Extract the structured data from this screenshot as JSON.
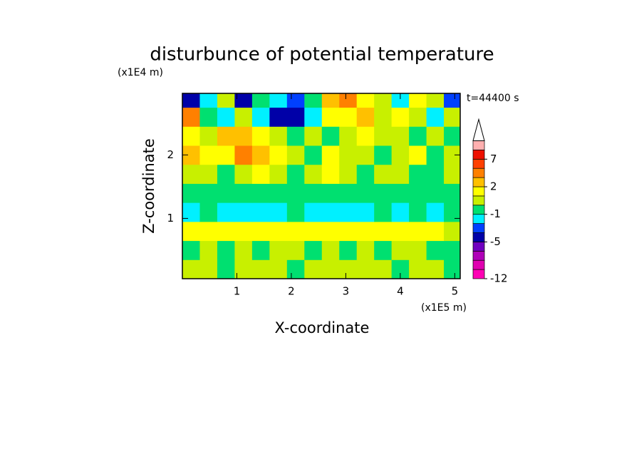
{
  "chart_data": {
    "type": "contour",
    "title": "disturbunce of potential temperature",
    "x_label": "X-coordinate",
    "y_label": "Z-coordinate",
    "x_unit": "(x1E5 m)",
    "y_unit": "(x1E4 m)",
    "annotation": "t=44400 s",
    "xlim": [
      0,
      5.1
    ],
    "ylim": [
      0.05,
      2.97
    ],
    "xticks": [
      1,
      2,
      3,
      4,
      5
    ],
    "yticks": [
      1,
      2
    ],
    "x": [
      0.16,
      0.48,
      0.8,
      1.12,
      1.44,
      1.76,
      2.08,
      2.4,
      2.72,
      3.04,
      3.36,
      3.68,
      4.0,
      4.32,
      4.64,
      4.96
    ],
    "y": [
      0.2,
      0.5,
      0.8,
      1.1,
      1.4,
      1.7,
      2.0,
      2.3,
      2.6,
      2.9
    ],
    "z": [
      [
        0.5,
        0.5,
        -0.5,
        0.5,
        0.5,
        0.5,
        -0.5,
        0.5,
        0.5,
        0.5,
        0.5,
        0.5,
        -0.5,
        0.5,
        0.5,
        -0.5
      ],
      [
        -0.5,
        0.5,
        -0.5,
        0.5,
        -0.5,
        0.5,
        0.5,
        -0.5,
        0.5,
        -0.5,
        0.5,
        -0.5,
        0.5,
        0.5,
        -0.5,
        -0.5
      ],
      [
        1.5,
        1.5,
        1.5,
        1.5,
        1.5,
        1.5,
        1.5,
        1.5,
        1.5,
        1.5,
        1.5,
        1.5,
        1.5,
        1.5,
        1.5,
        0.5
      ],
      [
        -1.5,
        -0.5,
        -1.5,
        -1.5,
        -1.5,
        -1.5,
        -0.5,
        -1.5,
        -1.5,
        -1.5,
        -1.5,
        -0.5,
        -1.5,
        -0.5,
        -1.5,
        -0.5
      ],
      [
        -0.5,
        -0.5,
        -0.5,
        -0.5,
        -0.5,
        -0.5,
        -0.5,
        -0.5,
        -0.5,
        -0.5,
        -0.5,
        -0.5,
        -0.5,
        -0.5,
        -0.5,
        -0.5
      ],
      [
        0.5,
        0.5,
        -0.5,
        0.5,
        1.5,
        0.5,
        -0.5,
        0.5,
        1.5,
        0.5,
        -0.5,
        0.5,
        0.5,
        -0.5,
        -0.5,
        0.5
      ],
      [
        2.5,
        1.5,
        1.5,
        4,
        2.5,
        1.5,
        0.5,
        -0.5,
        1.5,
        0.5,
        0.5,
        -0.5,
        0.5,
        1.5,
        -0.5,
        0.5
      ],
      [
        1.5,
        0.5,
        2.5,
        2.5,
        1.5,
        0.5,
        -0.5,
        0.5,
        -0.5,
        0.5,
        1.5,
        0.5,
        0.5,
        -0.5,
        0.5,
        -0.5
      ],
      [
        4,
        -0.5,
        -1.5,
        0.5,
        -1.5,
        -4,
        -4,
        -1.5,
        1.5,
        1.5,
        2.5,
        0.5,
        1.5,
        0.5,
        -1.5,
        0.5
      ],
      [
        -4,
        -1.5,
        0.5,
        -4,
        -0.5,
        -1.5,
        -2.5,
        -0.5,
        2.5,
        4,
        1.5,
        0.5,
        -1.5,
        1.5,
        0.5,
        -2.5
      ]
    ],
    "levels": [
      -12,
      -10,
      -8,
      -6,
      -5,
      -3,
      -2,
      -1,
      0,
      1,
      2,
      3,
      5,
      7,
      9,
      11
    ],
    "colors": [
      "#ff00b4",
      "#e000b0",
      "#b000b8",
      "#7000c0",
      "#0000a8",
      "#0040ff",
      "#00f0ff",
      "#00e070",
      "#c8f000",
      "#ffff00",
      "#ffc000",
      "#ff8000",
      "#ff4000",
      "#ee1000",
      "#ffb0b0"
    ],
    "cbar_ticks": [
      -12,
      -5,
      -1,
      2,
      7
    ]
  }
}
